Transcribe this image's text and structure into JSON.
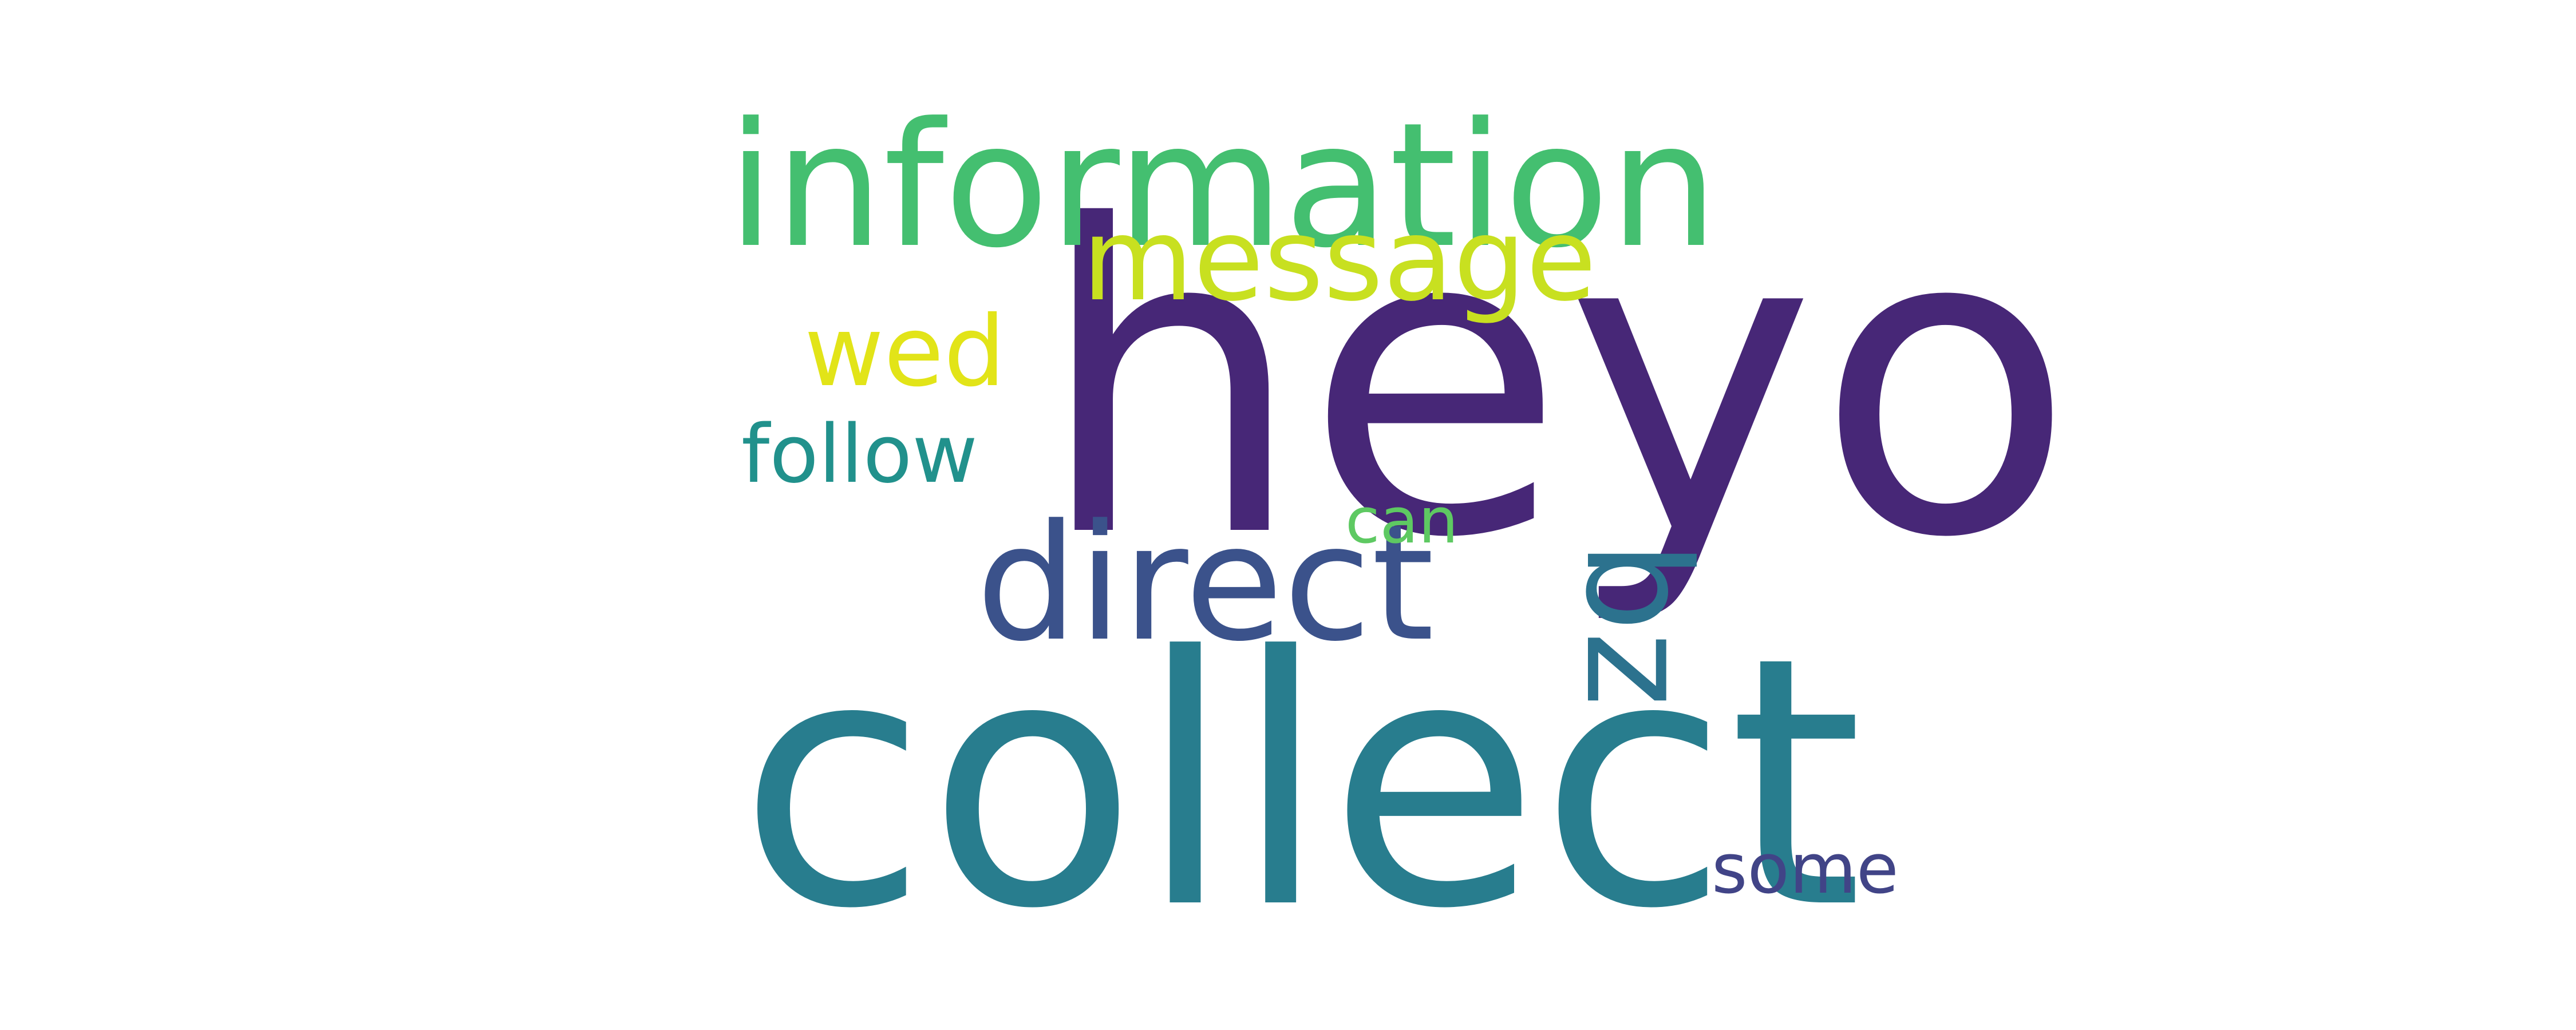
{
  "words": [
    {
      "text": "heyo",
      "color": "#472777"
    },
    {
      "text": "collect",
      "color": "#287d8e"
    },
    {
      "text": "information",
      "color": "#44bf70"
    },
    {
      "text": "direct",
      "color": "#3b528b"
    },
    {
      "text": "message",
      "color": "#c8e020"
    },
    {
      "text": "wed",
      "color": "#e2e418"
    },
    {
      "text": "follow",
      "color": "#21918c"
    },
    {
      "text": "bz",
      "color": "#2c728e"
    },
    {
      "text": "can",
      "color": "#5ec962"
    },
    {
      "text": "some",
      "color": "#414487"
    }
  ]
}
